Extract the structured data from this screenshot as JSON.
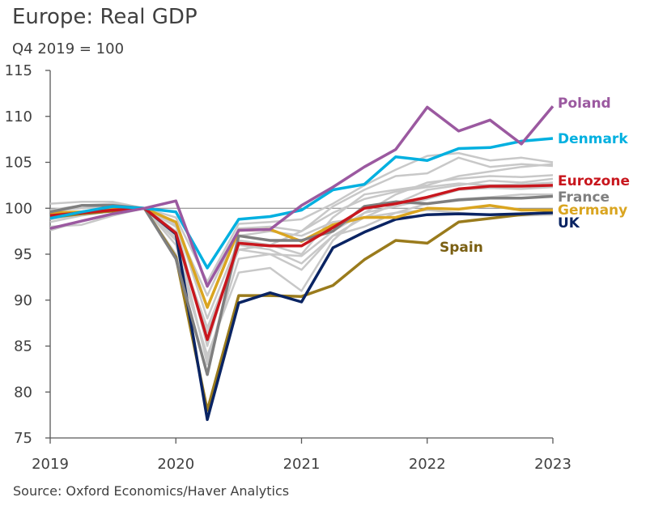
{
  "title": "Europe: Real GDP",
  "subtitle": "Q4 2019 = 100",
  "source": "Source: Oxford Economics/Haver Analytics",
  "chart_data": {
    "type": "line",
    "x": [
      "2019Q1",
      "2019Q2",
      "2019Q3",
      "2019Q4",
      "2020Q1",
      "2020Q2",
      "2020Q3",
      "2020Q4",
      "2021Q1",
      "2021Q2",
      "2021Q3",
      "2021Q4",
      "2022Q1",
      "2022Q2",
      "2022Q3",
      "2022Q4",
      "2023Q1"
    ],
    "xticks": [
      "2019",
      "2020",
      "2021",
      "2022",
      "2023"
    ],
    "yticks": [
      75,
      80,
      85,
      90,
      95,
      100,
      105,
      110,
      115
    ],
    "ylim": [
      75,
      115
    ],
    "reference_line": 100,
    "grid": false,
    "series": [
      {
        "name": "Poland",
        "color": "#9B59A0",
        "values": [
          97.8,
          98.6,
          99.4,
          100,
          100.8,
          91.5,
          97.6,
          97.7,
          100.3,
          102.3,
          104.5,
          106.4,
          111.0,
          108.4,
          109.6,
          107.0,
          111.1
        ]
      },
      {
        "name": "Denmark",
        "color": "#00B0E0",
        "values": [
          98.9,
          99.6,
          100.2,
          100,
          99.6,
          93.5,
          98.8,
          99.1,
          99.8,
          102.0,
          102.6,
          105.6,
          105.2,
          106.5,
          106.6,
          107.3,
          107.6
        ]
      },
      {
        "name": "Eurozone",
        "color": "#C8161D",
        "values": [
          99.2,
          99.5,
          99.8,
          100,
          97.3,
          85.7,
          96.2,
          95.9,
          95.9,
          97.9,
          100.0,
          100.5,
          101.2,
          102.1,
          102.4,
          102.4,
          102.5
        ]
      },
      {
        "name": "France",
        "color": "#7F7F7F",
        "values": [
          99.6,
          100.3,
          100.3,
          100,
          94.5,
          81.9,
          97.0,
          96.5,
          96.5,
          97.5,
          100.2,
          100.7,
          100.5,
          100.9,
          101.1,
          101.1,
          101.3
        ]
      },
      {
        "name": "Germany",
        "color": "#DAA520",
        "values": [
          99.5,
          99.6,
          100.0,
          100,
          98.5,
          89.2,
          97.6,
          97.7,
          96.4,
          98.2,
          99.0,
          99.0,
          100.0,
          99.9,
          100.3,
          99.8,
          99.8
        ]
      },
      {
        "name": "UK",
        "color": "#0A2463",
        "values": [
          99.3,
          99.5,
          99.9,
          100,
          97.2,
          77.0,
          89.7,
          90.8,
          89.8,
          95.7,
          97.4,
          98.8,
          99.3,
          99.4,
          99.3,
          99.4,
          99.5
        ]
      },
      {
        "name": "Spain",
        "color": "#9A7B1C",
        "values": [
          99.0,
          99.4,
          99.7,
          100,
          94.7,
          78.0,
          90.5,
          90.5,
          90.4,
          91.6,
          94.4,
          96.5,
          96.2,
          98.5,
          98.9,
          99.3,
          99.6
        ]
      }
    ],
    "other_series_color": "#C8C8C8",
    "other_series": [
      [
        100.5,
        100.7,
        100.7,
        100,
        99.0,
        92.0,
        98.3,
        98.5,
        98.8,
        100.5,
        102.5,
        104.2,
        105.7,
        106.0,
        105.2,
        105.5,
        105.0
      ],
      [
        99.8,
        100.3,
        100.5,
        100,
        98.0,
        90.5,
        97.8,
        98.0,
        97.5,
        100.2,
        102.0,
        103.5,
        103.8,
        105.5,
        104.5,
        104.8,
        104.6
      ],
      [
        98.5,
        99.2,
        99.7,
        100,
        96.5,
        87.0,
        95.5,
        96.0,
        95.0,
        99.0,
        101.5,
        102.0,
        102.5,
        103.5,
        104.0,
        104.5,
        104.8
      ],
      [
        98.0,
        98.2,
        99.2,
        100,
        95.0,
        84.0,
        93.0,
        93.5,
        91.0,
        96.5,
        99.5,
        101.5,
        102.8,
        103.2,
        103.5,
        103.4,
        103.6
      ],
      [
        99.0,
        99.6,
        100.0,
        100,
        96.0,
        83.5,
        94.5,
        95.0,
        93.3,
        97.0,
        99.0,
        100.5,
        102.0,
        102.5,
        103.0,
        102.8,
        103.2
      ],
      [
        99.7,
        100.0,
        100.2,
        100,
        98.5,
        88.0,
        96.5,
        96.0,
        97.5,
        99.5,
        101.0,
        101.8,
        102.3,
        102.7,
        102.5,
        102.6,
        102.8
      ],
      [
        97.6,
        98.6,
        99.3,
        100,
        96.8,
        86.5,
        95.5,
        95.0,
        94.8,
        97.5,
        99.5,
        100.2,
        101.0,
        102.0,
        102.2,
        102.1,
        102.3
      ],
      [
        98.8,
        99.3,
        99.8,
        100,
        97.5,
        83.0,
        96.0,
        95.5,
        94.0,
        97.0,
        98.0,
        99.5,
        100.5,
        101.0,
        101.2,
        101.5,
        101.5
      ],
      [
        99.2,
        99.5,
        100.0,
        100,
        98.2,
        85.0,
        97.0,
        97.5,
        97.0,
        98.5,
        99.0,
        99.5,
        99.8,
        99.5,
        99.3,
        99.2,
        99.3
      ]
    ]
  }
}
